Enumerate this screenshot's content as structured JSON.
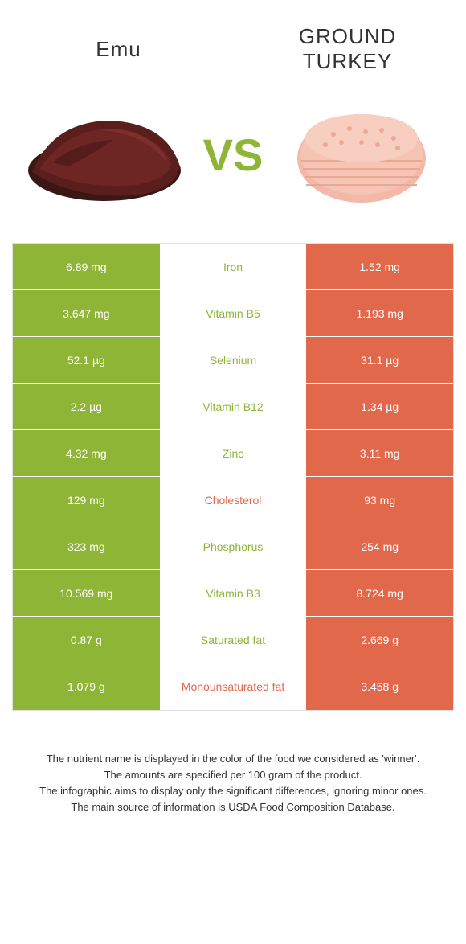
{
  "left": {
    "name": "Emu"
  },
  "right": {
    "name": "GROUND TURKEY"
  },
  "vs": "VS",
  "colors": {
    "left": "#8fb537",
    "right": "#e2684b",
    "midText_leftWin": "#8fb537",
    "midText_rightWin": "#e2684b"
  },
  "rows": [
    {
      "left": "6.89 mg",
      "label": "Iron",
      "right": "1.52 mg",
      "winner": "left"
    },
    {
      "left": "3.647 mg",
      "label": "Vitamin B5",
      "right": "1.193 mg",
      "winner": "left"
    },
    {
      "left": "52.1 µg",
      "label": "Selenium",
      "right": "31.1 µg",
      "winner": "left"
    },
    {
      "left": "2.2 µg",
      "label": "Vitamin B12",
      "right": "1.34 µg",
      "winner": "left"
    },
    {
      "left": "4.32 mg",
      "label": "Zinc",
      "right": "3.11 mg",
      "winner": "left"
    },
    {
      "left": "129 mg",
      "label": "Cholesterol",
      "right": "93 mg",
      "winner": "right"
    },
    {
      "left": "323 mg",
      "label": "Phosphorus",
      "right": "254 mg",
      "winner": "left"
    },
    {
      "left": "10.569 mg",
      "label": "Vitamin B3",
      "right": "8.724 mg",
      "winner": "left"
    },
    {
      "left": "0.87 g",
      "label": "Saturated fat",
      "right": "2.669 g",
      "winner": "left"
    },
    {
      "left": "1.079 g",
      "label": "Monounsaturated fat",
      "right": "3.458 g",
      "winner": "right"
    }
  ],
  "footer": {
    "line1": "The nutrient name is displayed in the color of the food we considered as 'winner'.",
    "line2": "The amounts are specified per 100 gram of the product.",
    "line3": "The infographic aims to display only the significant differences, ignoring minor ones.",
    "line4": "The main source of information is USDA Food Composition Database."
  }
}
